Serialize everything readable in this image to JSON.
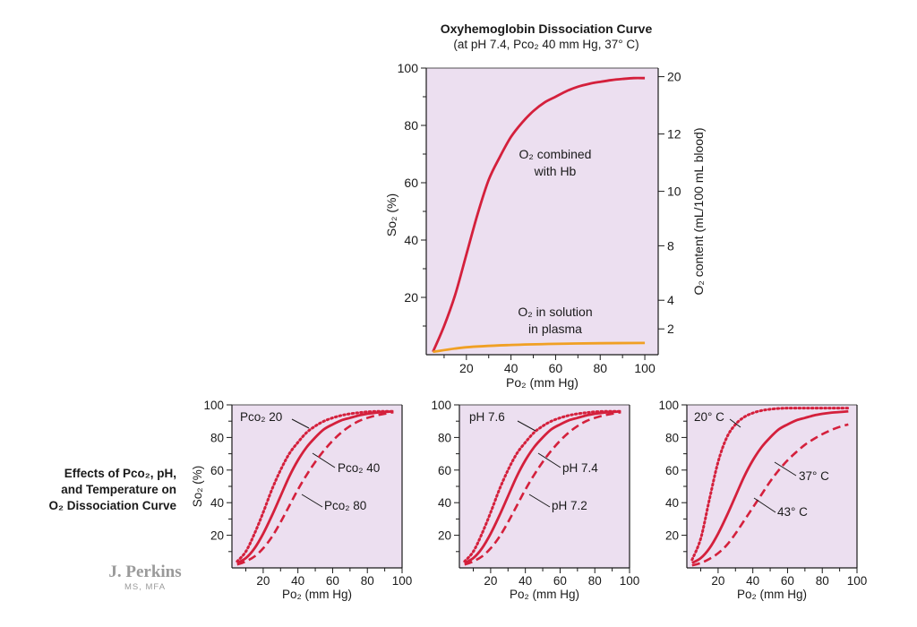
{
  "title": "Oxyhemoglobin Dissociation Curve",
  "subtitle": "(at pH 7.4, Pco₂ 40 mm Hg, 37° C)",
  "side_caption": {
    "line1": "Effects of Pco₂, pH,",
    "line2": "and Temperature on",
    "line3": "O₂ Dissociation Curve"
  },
  "signature": {
    "name": "J. Perkins",
    "credentials": "MS, MFA"
  },
  "colors": {
    "plot_bg": "#ecdff0",
    "hb_curve": "#d4203c",
    "plasma_curve": "#f0a024",
    "axis": "#1a1a1a",
    "signature": "#9a9a9a"
  },
  "chart_data": [
    {
      "id": "main",
      "type": "line",
      "title": "Oxyhemoglobin Dissociation Curve",
      "subtitle": "(at pH 7.4, Pco₂ 40 mm Hg, 37° C)",
      "xlabel": "Po₂ (mm Hg)",
      "ylabel": "So₂ (%)",
      "y2label": "O₂ content (mL/100 mL blood)",
      "xlim": [
        2,
        106
      ],
      "ylim": [
        0,
        100
      ],
      "xticks": [
        20,
        40,
        60,
        80,
        100
      ],
      "yticks": [
        20,
        40,
        60,
        80,
        100
      ],
      "y2ticks": [
        {
          "label": "2",
          "at_y": 9
        },
        {
          "label": "4",
          "at_y": 19
        },
        {
          "label": "8",
          "at_y": 38
        },
        {
          "label": "10",
          "at_y": 57
        },
        {
          "label": "12",
          "at_y": 77
        },
        {
          "label": "20",
          "at_y": 97
        }
      ],
      "series": [
        {
          "key": "hb",
          "label_line1": "O₂ combined",
          "label_line2": "with Hb",
          "style": "solid",
          "x": [
            5,
            10,
            15,
            20,
            25,
            30,
            35,
            40,
            45,
            50,
            55,
            60,
            65,
            70,
            75,
            80,
            85,
            90,
            95,
            100
          ],
          "y": [
            1,
            10,
            21,
            35,
            49,
            61,
            69,
            76,
            81,
            85,
            88,
            90,
            92,
            93.5,
            94.5,
            95.2,
            95.8,
            96.2,
            96.5,
            96.5
          ]
        },
        {
          "key": "plasma",
          "label_line1": "O₂ in solution",
          "label_line2": "in plasma",
          "style": "solid",
          "x": [
            5,
            20,
            40,
            60,
            80,
            100
          ],
          "y": [
            1,
            2.6,
            3.4,
            3.8,
            4.0,
            4.1
          ]
        }
      ]
    },
    {
      "id": "pco2",
      "type": "line",
      "xlabel": "Po₂ (mm Hg)",
      "ylabel": "So₂ (%)",
      "xlim": [
        2,
        100
      ],
      "ylim": [
        0,
        100
      ],
      "xticks": [
        20,
        40,
        60,
        80,
        100
      ],
      "yticks": [
        20,
        40,
        60,
        80,
        100
      ],
      "series": [
        {
          "label": "Pco₂ 20",
          "style": "dotted",
          "x": [
            5,
            10,
            15,
            20,
            25,
            30,
            35,
            40,
            45,
            50,
            55,
            60,
            65,
            70,
            75,
            80,
            85,
            90,
            95
          ],
          "y": [
            4,
            10,
            21,
            34,
            48,
            60,
            70,
            77,
            83,
            87,
            90,
            92,
            93.5,
            94.5,
            95.2,
            95.7,
            96,
            96,
            96
          ]
        },
        {
          "label": "Pco₂ 40",
          "style": "solid",
          "x": [
            5,
            10,
            15,
            20,
            25,
            30,
            35,
            40,
            45,
            50,
            55,
            60,
            65,
            70,
            75,
            80,
            85,
            90,
            95
          ],
          "y": [
            3,
            6,
            12,
            21,
            32,
            44,
            56,
            66,
            74,
            80,
            85,
            88,
            90.5,
            92,
            93.5,
            94.5,
            95.2,
            95.6,
            96
          ]
        },
        {
          "label": "Pco₂ 80",
          "style": "dashed",
          "x": [
            5,
            10,
            15,
            20,
            25,
            30,
            35,
            40,
            45,
            50,
            55,
            60,
            65,
            70,
            75,
            80,
            85,
            90,
            95
          ],
          "y": [
            2,
            4,
            7,
            12,
            19,
            28,
            38,
            48,
            57,
            65,
            72,
            78,
            83,
            87,
            90,
            92,
            93.5,
            94.5,
            95.5
          ]
        }
      ]
    },
    {
      "id": "ph",
      "type": "line",
      "xlabel": "Po₂ (mm Hg)",
      "ylabel": "",
      "xlim": [
        2,
        100
      ],
      "ylim": [
        0,
        100
      ],
      "xticks": [
        20,
        40,
        60,
        80,
        100
      ],
      "yticks": [
        20,
        40,
        60,
        80,
        100
      ],
      "series": [
        {
          "label": "pH 7.6",
          "style": "dotted",
          "x": [
            5,
            10,
            15,
            20,
            25,
            30,
            35,
            40,
            45,
            50,
            55,
            60,
            65,
            70,
            75,
            80,
            85,
            90,
            95
          ],
          "y": [
            4,
            10,
            21,
            34,
            48,
            60,
            70,
            77,
            83,
            87,
            90,
            92,
            93.5,
            94.5,
            95.2,
            95.7,
            96,
            96,
            96
          ]
        },
        {
          "label": "pH 7.4",
          "style": "solid",
          "x": [
            5,
            10,
            15,
            20,
            25,
            30,
            35,
            40,
            45,
            50,
            55,
            60,
            65,
            70,
            75,
            80,
            85,
            90,
            95
          ],
          "y": [
            3,
            6,
            12,
            21,
            32,
            44,
            56,
            66,
            74,
            80,
            85,
            88,
            90.5,
            92,
            93.5,
            94.5,
            95.2,
            95.6,
            96
          ]
        },
        {
          "label": "pH 7.2",
          "style": "dashed",
          "x": [
            5,
            10,
            15,
            20,
            25,
            30,
            35,
            40,
            45,
            50,
            55,
            60,
            65,
            70,
            75,
            80,
            85,
            90,
            95
          ],
          "y": [
            2,
            4,
            7,
            12,
            19,
            28,
            38,
            48,
            57,
            65,
            72,
            78,
            83,
            87,
            90,
            92,
            93.5,
            94.5,
            95.5
          ]
        }
      ]
    },
    {
      "id": "temp",
      "type": "line",
      "xlabel": "Po₂ (mm Hg)",
      "ylabel": "",
      "xlim": [
        2,
        100
      ],
      "ylim": [
        0,
        100
      ],
      "xticks": [
        20,
        40,
        60,
        80,
        100
      ],
      "yticks": [
        20,
        40,
        60,
        80,
        100
      ],
      "series": [
        {
          "label": "20° C",
          "style": "dotted",
          "x": [
            5,
            10,
            15,
            20,
            25,
            30,
            35,
            40,
            45,
            50,
            55,
            60,
            65,
            70,
            75,
            80,
            85,
            90,
            95
          ],
          "y": [
            5,
            18,
            42,
            65,
            80,
            88,
            92.5,
            95,
            96.5,
            97.3,
            97.8,
            98,
            98,
            98,
            98,
            98,
            98,
            98,
            98
          ]
        },
        {
          "label": "37° C",
          "style": "solid",
          "x": [
            5,
            10,
            15,
            20,
            25,
            30,
            35,
            40,
            45,
            50,
            55,
            60,
            65,
            70,
            75,
            80,
            85,
            90,
            95
          ],
          "y": [
            3,
            6,
            12,
            21,
            32,
            44,
            56,
            66,
            74,
            80,
            85,
            88,
            90.5,
            92,
            93.5,
            94.5,
            95.2,
            95.6,
            96
          ]
        },
        {
          "label": "43° C",
          "style": "dashed",
          "x": [
            5,
            10,
            15,
            20,
            25,
            30,
            35,
            40,
            45,
            50,
            55,
            60,
            65,
            70,
            75,
            80,
            85,
            90,
            95
          ],
          "y": [
            1.5,
            3,
            5.5,
            9,
            14,
            21,
            29,
            37,
            45,
            53,
            60,
            66,
            71,
            75.5,
            79,
            82,
            84.5,
            86.5,
            88
          ]
        }
      ]
    }
  ]
}
